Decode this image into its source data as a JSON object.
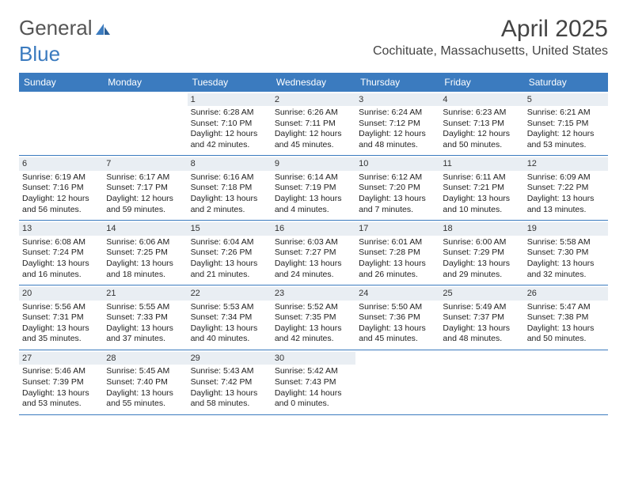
{
  "logo": {
    "text_general": "General",
    "text_blue": "Blue"
  },
  "title": "April 2025",
  "location": "Cochituate, Massachusetts, United States",
  "colors": {
    "header_bg": "#3b7bbf",
    "header_text": "#ffffff",
    "daynum_bg": "#e9eef3",
    "row_border": "#3b7bbf",
    "body_text": "#222222",
    "title_text": "#444444"
  },
  "weekdays": [
    "Sunday",
    "Monday",
    "Tuesday",
    "Wednesday",
    "Thursday",
    "Friday",
    "Saturday"
  ],
  "weeks": [
    [
      {
        "empty": true
      },
      {
        "empty": true
      },
      {
        "num": "1",
        "sunrise": "Sunrise: 6:28 AM",
        "sunset": "Sunset: 7:10 PM",
        "day1": "Daylight: 12 hours",
        "day2": "and 42 minutes."
      },
      {
        "num": "2",
        "sunrise": "Sunrise: 6:26 AM",
        "sunset": "Sunset: 7:11 PM",
        "day1": "Daylight: 12 hours",
        "day2": "and 45 minutes."
      },
      {
        "num": "3",
        "sunrise": "Sunrise: 6:24 AM",
        "sunset": "Sunset: 7:12 PM",
        "day1": "Daylight: 12 hours",
        "day2": "and 48 minutes."
      },
      {
        "num": "4",
        "sunrise": "Sunrise: 6:23 AM",
        "sunset": "Sunset: 7:13 PM",
        "day1": "Daylight: 12 hours",
        "day2": "and 50 minutes."
      },
      {
        "num": "5",
        "sunrise": "Sunrise: 6:21 AM",
        "sunset": "Sunset: 7:15 PM",
        "day1": "Daylight: 12 hours",
        "day2": "and 53 minutes."
      }
    ],
    [
      {
        "num": "6",
        "sunrise": "Sunrise: 6:19 AM",
        "sunset": "Sunset: 7:16 PM",
        "day1": "Daylight: 12 hours",
        "day2": "and 56 minutes."
      },
      {
        "num": "7",
        "sunrise": "Sunrise: 6:17 AM",
        "sunset": "Sunset: 7:17 PM",
        "day1": "Daylight: 12 hours",
        "day2": "and 59 minutes."
      },
      {
        "num": "8",
        "sunrise": "Sunrise: 6:16 AM",
        "sunset": "Sunset: 7:18 PM",
        "day1": "Daylight: 13 hours",
        "day2": "and 2 minutes."
      },
      {
        "num": "9",
        "sunrise": "Sunrise: 6:14 AM",
        "sunset": "Sunset: 7:19 PM",
        "day1": "Daylight: 13 hours",
        "day2": "and 4 minutes."
      },
      {
        "num": "10",
        "sunrise": "Sunrise: 6:12 AM",
        "sunset": "Sunset: 7:20 PM",
        "day1": "Daylight: 13 hours",
        "day2": "and 7 minutes."
      },
      {
        "num": "11",
        "sunrise": "Sunrise: 6:11 AM",
        "sunset": "Sunset: 7:21 PM",
        "day1": "Daylight: 13 hours",
        "day2": "and 10 minutes."
      },
      {
        "num": "12",
        "sunrise": "Sunrise: 6:09 AM",
        "sunset": "Sunset: 7:22 PM",
        "day1": "Daylight: 13 hours",
        "day2": "and 13 minutes."
      }
    ],
    [
      {
        "num": "13",
        "sunrise": "Sunrise: 6:08 AM",
        "sunset": "Sunset: 7:24 PM",
        "day1": "Daylight: 13 hours",
        "day2": "and 16 minutes."
      },
      {
        "num": "14",
        "sunrise": "Sunrise: 6:06 AM",
        "sunset": "Sunset: 7:25 PM",
        "day1": "Daylight: 13 hours",
        "day2": "and 18 minutes."
      },
      {
        "num": "15",
        "sunrise": "Sunrise: 6:04 AM",
        "sunset": "Sunset: 7:26 PM",
        "day1": "Daylight: 13 hours",
        "day2": "and 21 minutes."
      },
      {
        "num": "16",
        "sunrise": "Sunrise: 6:03 AM",
        "sunset": "Sunset: 7:27 PM",
        "day1": "Daylight: 13 hours",
        "day2": "and 24 minutes."
      },
      {
        "num": "17",
        "sunrise": "Sunrise: 6:01 AM",
        "sunset": "Sunset: 7:28 PM",
        "day1": "Daylight: 13 hours",
        "day2": "and 26 minutes."
      },
      {
        "num": "18",
        "sunrise": "Sunrise: 6:00 AM",
        "sunset": "Sunset: 7:29 PM",
        "day1": "Daylight: 13 hours",
        "day2": "and 29 minutes."
      },
      {
        "num": "19",
        "sunrise": "Sunrise: 5:58 AM",
        "sunset": "Sunset: 7:30 PM",
        "day1": "Daylight: 13 hours",
        "day2": "and 32 minutes."
      }
    ],
    [
      {
        "num": "20",
        "sunrise": "Sunrise: 5:56 AM",
        "sunset": "Sunset: 7:31 PM",
        "day1": "Daylight: 13 hours",
        "day2": "and 35 minutes."
      },
      {
        "num": "21",
        "sunrise": "Sunrise: 5:55 AM",
        "sunset": "Sunset: 7:33 PM",
        "day1": "Daylight: 13 hours",
        "day2": "and 37 minutes."
      },
      {
        "num": "22",
        "sunrise": "Sunrise: 5:53 AM",
        "sunset": "Sunset: 7:34 PM",
        "day1": "Daylight: 13 hours",
        "day2": "and 40 minutes."
      },
      {
        "num": "23",
        "sunrise": "Sunrise: 5:52 AM",
        "sunset": "Sunset: 7:35 PM",
        "day1": "Daylight: 13 hours",
        "day2": "and 42 minutes."
      },
      {
        "num": "24",
        "sunrise": "Sunrise: 5:50 AM",
        "sunset": "Sunset: 7:36 PM",
        "day1": "Daylight: 13 hours",
        "day2": "and 45 minutes."
      },
      {
        "num": "25",
        "sunrise": "Sunrise: 5:49 AM",
        "sunset": "Sunset: 7:37 PM",
        "day1": "Daylight: 13 hours",
        "day2": "and 48 minutes."
      },
      {
        "num": "26",
        "sunrise": "Sunrise: 5:47 AM",
        "sunset": "Sunset: 7:38 PM",
        "day1": "Daylight: 13 hours",
        "day2": "and 50 minutes."
      }
    ],
    [
      {
        "num": "27",
        "sunrise": "Sunrise: 5:46 AM",
        "sunset": "Sunset: 7:39 PM",
        "day1": "Daylight: 13 hours",
        "day2": "and 53 minutes."
      },
      {
        "num": "28",
        "sunrise": "Sunrise: 5:45 AM",
        "sunset": "Sunset: 7:40 PM",
        "day1": "Daylight: 13 hours",
        "day2": "and 55 minutes."
      },
      {
        "num": "29",
        "sunrise": "Sunrise: 5:43 AM",
        "sunset": "Sunset: 7:42 PM",
        "day1": "Daylight: 13 hours",
        "day2": "and 58 minutes."
      },
      {
        "num": "30",
        "sunrise": "Sunrise: 5:42 AM",
        "sunset": "Sunset: 7:43 PM",
        "day1": "Daylight: 14 hours",
        "day2": "and 0 minutes."
      },
      {
        "empty": true
      },
      {
        "empty": true
      },
      {
        "empty": true
      }
    ]
  ]
}
